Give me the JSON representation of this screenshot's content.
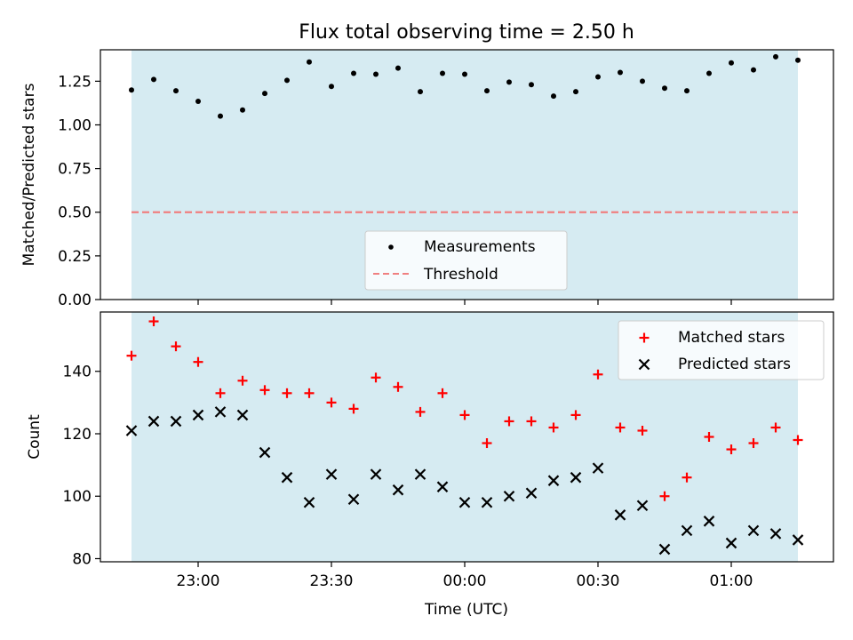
{
  "figure": {
    "title": "Flux total observing time = 2.50 h",
    "xlabel": "Time (UTC)",
    "x_tick_labels": [
      "23:00",
      "23:30",
      "00:00",
      "00:30",
      "01:00"
    ],
    "x_ticks_minutes": [
      0,
      30,
      60,
      90,
      120
    ],
    "x_range_minutes": [
      -22,
      143
    ],
    "shaded_span_minutes": [
      -15,
      135
    ],
    "colors": {
      "span": "#add8e6",
      "measurements": "#000000",
      "threshold": "#f08080",
      "matched": "#ff0000",
      "predicted": "#000000"
    }
  },
  "chart_data": [
    {
      "type": "scatter",
      "ylabel": "Matched/Predicted stars",
      "ylim": [
        0,
        1.43
      ],
      "y_ticks": [
        0,
        0.25,
        0.5,
        0.75,
        1,
        1.25
      ],
      "y_tick_labels": [
        "0.00",
        "0.25",
        "0.50",
        "0.75",
        "1.00",
        "1.25"
      ],
      "legend_position": "lower-center",
      "series": [
        {
          "name": "Measurements",
          "marker": "dot",
          "x": [
            "22:45",
            "22:50",
            "22:55",
            "23:00",
            "23:05",
            "23:10",
            "23:15",
            "23:20",
            "23:25",
            "23:30",
            "23:35",
            "23:40",
            "23:45",
            "23:50",
            "23:55",
            "00:00",
            "00:05",
            "00:10",
            "00:15",
            "00:20",
            "00:25",
            "00:30",
            "00:35",
            "00:40",
            "00:45",
            "00:50",
            "00:55",
            "01:00",
            "01:05",
            "01:10",
            "01:15"
          ],
          "y": [
            1.2,
            1.26,
            1.195,
            1.135,
            1.05,
            1.085,
            1.18,
            1.255,
            1.36,
            1.22,
            1.295,
            1.29,
            1.325,
            1.19,
            1.295,
            1.29,
            1.195,
            1.245,
            1.23,
            1.165,
            1.19,
            1.275,
            1.3,
            1.25,
            1.21,
            1.195,
            1.295,
            1.355,
            1.315,
            1.39,
            1.37
          ]
        },
        {
          "name": "Threshold",
          "marker": "dashed-line",
          "y_value": 0.5
        }
      ]
    },
    {
      "type": "scatter",
      "ylabel": "Count",
      "ylim": [
        79,
        159
      ],
      "y_ticks": [
        80,
        100,
        120,
        140
      ],
      "y_tick_labels": [
        "80",
        "100",
        "120",
        "140"
      ],
      "legend_position": "top-right",
      "series": [
        {
          "name": "Matched stars",
          "marker": "plus",
          "x": [
            "22:45",
            "22:50",
            "22:55",
            "23:00",
            "23:05",
            "23:10",
            "23:15",
            "23:20",
            "23:25",
            "23:30",
            "23:35",
            "23:40",
            "23:45",
            "23:50",
            "23:55",
            "00:00",
            "00:05",
            "00:10",
            "00:15",
            "00:20",
            "00:25",
            "00:30",
            "00:35",
            "00:40",
            "00:45",
            "00:50",
            "00:55",
            "01:00",
            "01:05",
            "01:10",
            "01:15"
          ],
          "y": [
            145,
            156,
            148,
            143,
            133,
            137,
            134,
            133,
            133,
            130,
            128,
            138,
            135,
            127,
            133,
            126,
            117,
            124,
            124,
            122,
            126,
            139,
            122,
            121,
            100,
            106,
            119,
            115,
            117,
            122,
            118
          ]
        },
        {
          "name": "Predicted stars",
          "marker": "x",
          "x": [
            "22:45",
            "22:50",
            "22:55",
            "23:00",
            "23:05",
            "23:10",
            "23:15",
            "23:20",
            "23:25",
            "23:30",
            "23:35",
            "23:40",
            "23:45",
            "23:50",
            "23:55",
            "00:00",
            "00:05",
            "00:10",
            "00:15",
            "00:20",
            "00:25",
            "00:30",
            "00:35",
            "00:40",
            "00:45",
            "00:50",
            "00:55",
            "01:00",
            "01:05",
            "01:10",
            "01:15"
          ],
          "y": [
            121,
            124,
            124,
            126,
            127,
            126,
            114,
            106,
            98,
            107,
            99,
            107,
            102,
            107,
            103,
            98,
            98,
            100,
            101,
            105,
            106,
            109,
            94,
            97,
            83,
            89,
            92,
            85,
            89,
            88,
            86
          ]
        }
      ]
    }
  ]
}
